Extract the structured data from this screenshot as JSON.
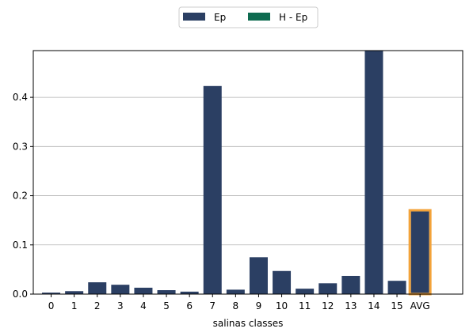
{
  "chart_data": {
    "type": "bar",
    "title": "",
    "xlabel": "salinas classes",
    "ylabel": "",
    "categories": [
      "0",
      "1",
      "2",
      "3",
      "4",
      "5",
      "6",
      "7",
      "8",
      "9",
      "10",
      "11",
      "12",
      "13",
      "14",
      "15",
      "AVG"
    ],
    "series": [
      {
        "name": "Ep",
        "color": "#2b3f63",
        "values": [
          0.003,
          0.006,
          0.024,
          0.019,
          0.013,
          0.008,
          0.005,
          0.423,
          0.009,
          0.075,
          0.047,
          0.011,
          0.022,
          0.037,
          0.495,
          0.027,
          0.168
        ]
      },
      {
        "name": "H - Ep",
        "color": "#0e6b50",
        "values": [
          0,
          0,
          0,
          0,
          0,
          0,
          0,
          0,
          0,
          0,
          0,
          0,
          0,
          0,
          0,
          0,
          0
        ]
      }
    ],
    "highlight": {
      "category": "AVG",
      "edge_color": "#f3a33a"
    },
    "ylim": [
      0,
      0.495
    ],
    "yticks": [
      0.0,
      0.1,
      0.2,
      0.3,
      0.4
    ],
    "ytick_labels": [
      "0.0",
      "0.1",
      "0.2",
      "0.3",
      "0.4"
    ],
    "grid": "y",
    "grid_color": "#b0b0b0",
    "legend": {
      "placement": "top-center",
      "columns": 2
    }
  }
}
